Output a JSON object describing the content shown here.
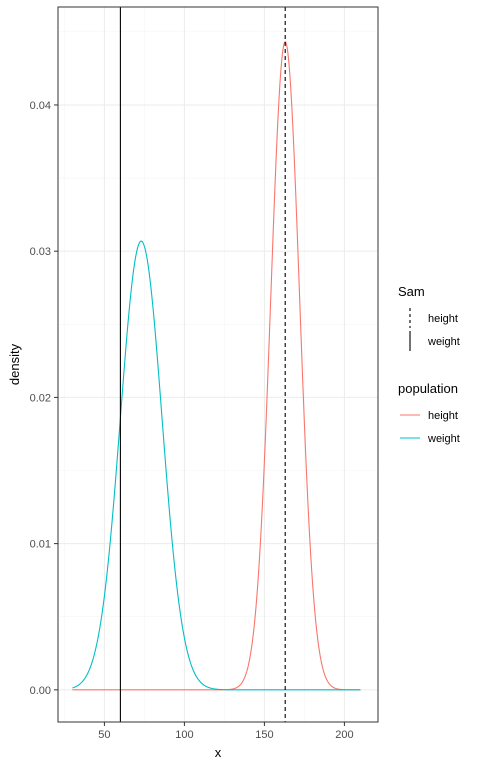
{
  "chart_data": {
    "type": "line",
    "title": "",
    "xlabel": "x",
    "ylabel": "density",
    "xlim": [
      21,
      221
    ],
    "ylim": [
      -0.0022,
      0.0467
    ],
    "x_ticks": [
      50,
      100,
      150,
      200
    ],
    "y_ticks": [
      0.0,
      0.01,
      0.02,
      0.03,
      0.04
    ],
    "y_tick_labels": [
      "0.00",
      "0.01",
      "0.02",
      "0.03",
      "0.04"
    ],
    "x_tick_labels": [
      "50",
      "100",
      "150",
      "200"
    ],
    "grid": true,
    "x_range": [
      30,
      210
    ],
    "series": [
      {
        "name": "height",
        "distribution": "normal",
        "mean": 163,
        "sd": 9,
        "color": "#F8766D"
      },
      {
        "name": "weight",
        "distribution": "normal",
        "mean": 73,
        "sd": 13,
        "color": "#00BFC4"
      }
    ],
    "vlines": [
      {
        "name": "height",
        "x": 163,
        "linetype": "dashed",
        "color": "#000000"
      },
      {
        "name": "weight",
        "x": 60,
        "linetype": "solid",
        "color": "#000000"
      }
    ],
    "legends": [
      {
        "title": "Sam",
        "entries": [
          {
            "label": "height",
            "linetype": "dashed",
            "color": "#000000"
          },
          {
            "label": "weight",
            "linetype": "solid",
            "color": "#000000"
          }
        ]
      },
      {
        "title": "population",
        "entries": [
          {
            "label": "height",
            "color": "#F8766D"
          },
          {
            "label": "weight",
            "color": "#00BFC4"
          }
        ]
      }
    ],
    "legend_position": "right"
  }
}
